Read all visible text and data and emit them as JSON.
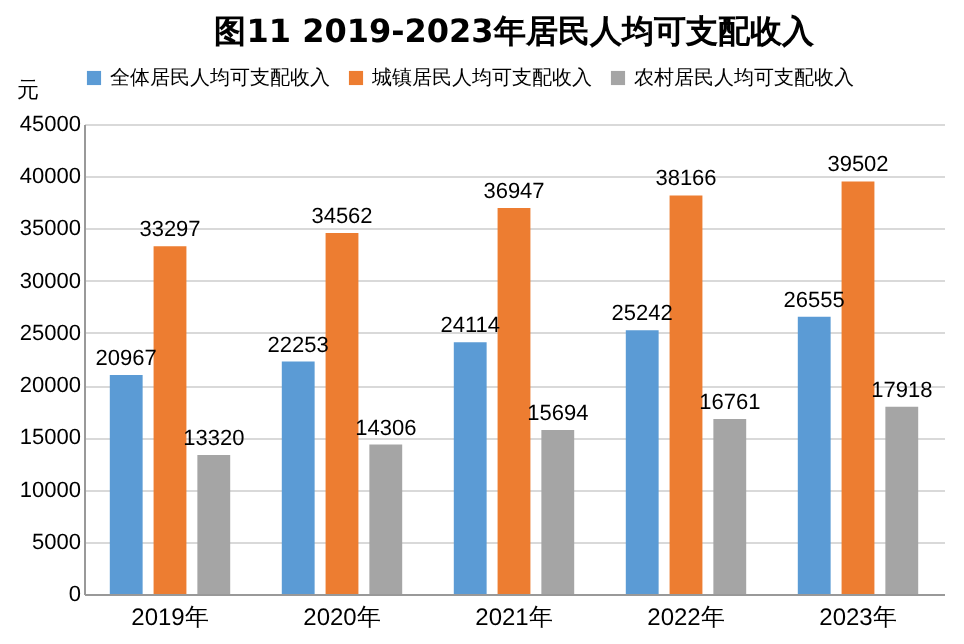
{
  "chart_data": {
    "type": "bar",
    "title": "图11  2019-2023年居民人均可支配收入",
    "ylabel": "元",
    "categories": [
      "2019年",
      "2020年",
      "2021年",
      "2022年",
      "2023年"
    ],
    "series": [
      {
        "name": "全体居民人均可支配收入",
        "color": "#5b9bd5",
        "values": [
          20967,
          22253,
          24114,
          25242,
          26555
        ]
      },
      {
        "name": "城镇居民人均可支配收入",
        "color": "#ed7d31",
        "values": [
          33297,
          34562,
          36947,
          38166,
          39502
        ]
      },
      {
        "name": "农村居民人均可支配收入",
        "color": "#a5a5a5",
        "values": [
          13320,
          14306,
          15694,
          16761,
          17918
        ]
      }
    ],
    "ylim": [
      0,
      45000
    ],
    "yticks": [
      0,
      5000,
      10000,
      15000,
      20000,
      25000,
      30000,
      35000,
      40000,
      45000
    ],
    "grid": "y",
    "legend": "top",
    "data_labels": true
  }
}
